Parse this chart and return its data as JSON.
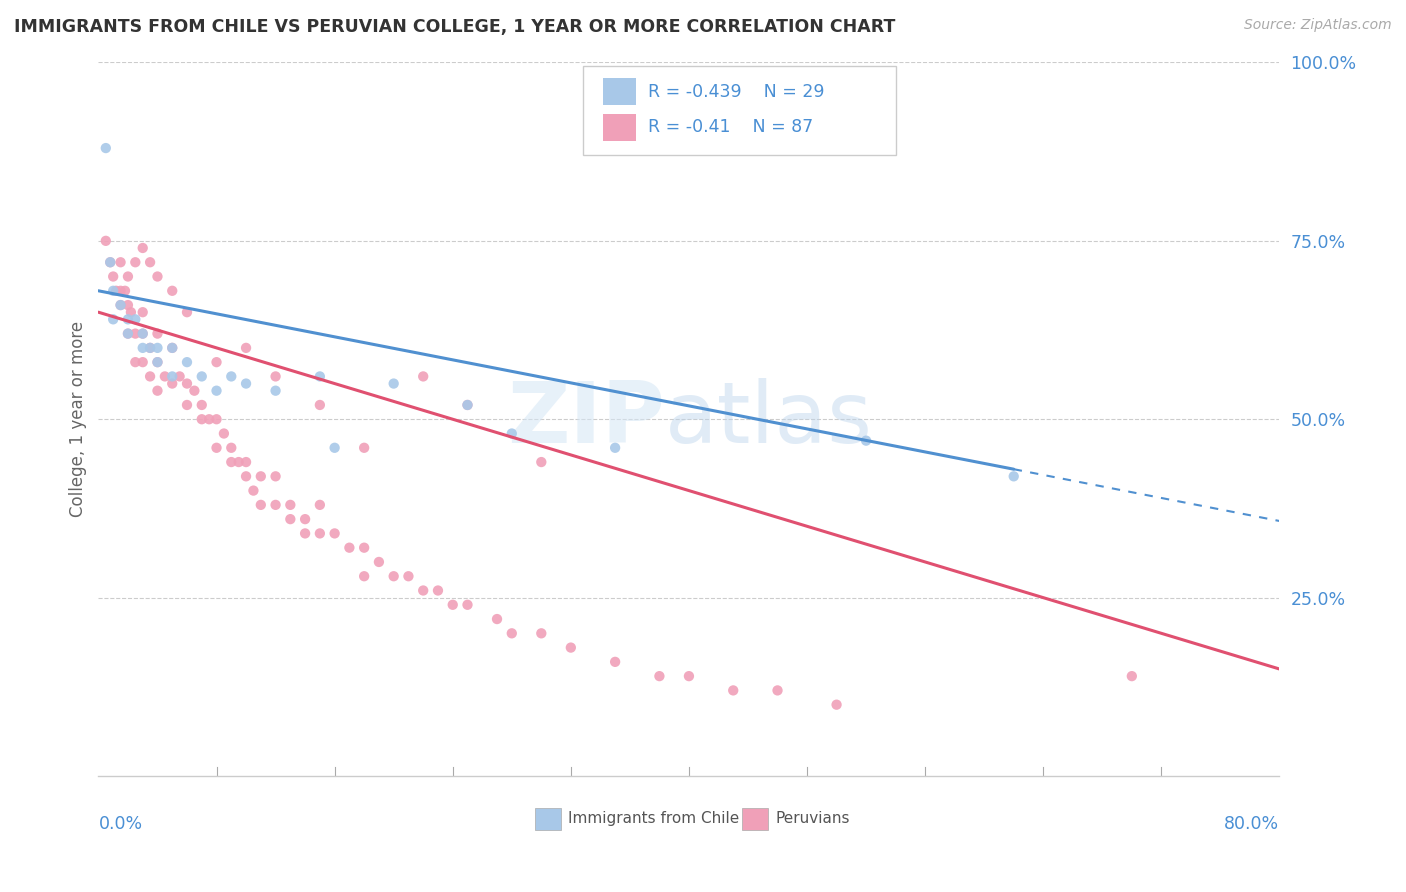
{
  "title": "IMMIGRANTS FROM CHILE VS PERUVIAN COLLEGE, 1 YEAR OR MORE CORRELATION CHART",
  "source_text": "Source: ZipAtlas.com",
  "ylabel": "College, 1 year or more",
  "r_chile": -0.439,
  "n_chile": 29,
  "r_peru": -0.41,
  "n_peru": 87,
  "xlim": [
    0.0,
    0.8
  ],
  "ylim": [
    0.0,
    1.0
  ],
  "chile_color": "#a8c8e8",
  "peru_color": "#f0a0b8",
  "chile_line_color": "#5090d0",
  "peru_line_color": "#e05070",
  "background_color": "#ffffff",
  "chile_scatter_x": [
    0.005,
    0.008,
    0.01,
    0.01,
    0.015,
    0.02,
    0.02,
    0.025,
    0.03,
    0.03,
    0.035,
    0.04,
    0.04,
    0.05,
    0.05,
    0.06,
    0.07,
    0.08,
    0.09,
    0.1,
    0.12,
    0.15,
    0.2,
    0.25,
    0.28,
    0.35,
    0.52,
    0.62,
    0.16
  ],
  "chile_scatter_y": [
    0.88,
    0.72,
    0.68,
    0.64,
    0.66,
    0.64,
    0.62,
    0.64,
    0.62,
    0.6,
    0.6,
    0.6,
    0.58,
    0.6,
    0.56,
    0.58,
    0.56,
    0.54,
    0.56,
    0.55,
    0.54,
    0.56,
    0.55,
    0.52,
    0.48,
    0.46,
    0.47,
    0.42,
    0.46
  ],
  "peru_scatter_x": [
    0.005,
    0.008,
    0.01,
    0.012,
    0.015,
    0.015,
    0.018,
    0.02,
    0.02,
    0.022,
    0.025,
    0.025,
    0.03,
    0.03,
    0.03,
    0.035,
    0.035,
    0.04,
    0.04,
    0.04,
    0.045,
    0.05,
    0.05,
    0.055,
    0.06,
    0.06,
    0.065,
    0.07,
    0.07,
    0.075,
    0.08,
    0.08,
    0.085,
    0.09,
    0.09,
    0.095,
    0.1,
    0.1,
    0.105,
    0.11,
    0.11,
    0.12,
    0.12,
    0.13,
    0.13,
    0.14,
    0.14,
    0.15,
    0.15,
    0.16,
    0.17,
    0.18,
    0.18,
    0.19,
    0.2,
    0.21,
    0.22,
    0.23,
    0.24,
    0.25,
    0.27,
    0.28,
    0.3,
    0.32,
    0.35,
    0.38,
    0.4,
    0.43,
    0.46,
    0.5,
    0.22,
    0.25,
    0.3,
    0.15,
    0.18,
    0.1,
    0.12,
    0.08,
    0.06,
    0.05,
    0.04,
    0.035,
    0.03,
    0.025,
    0.02,
    0.015,
    0.7
  ],
  "peru_scatter_y": [
    0.75,
    0.72,
    0.7,
    0.68,
    0.72,
    0.66,
    0.68,
    0.66,
    0.62,
    0.65,
    0.62,
    0.58,
    0.65,
    0.62,
    0.58,
    0.6,
    0.56,
    0.62,
    0.58,
    0.54,
    0.56,
    0.6,
    0.55,
    0.56,
    0.55,
    0.52,
    0.54,
    0.52,
    0.5,
    0.5,
    0.5,
    0.46,
    0.48,
    0.46,
    0.44,
    0.44,
    0.44,
    0.42,
    0.4,
    0.42,
    0.38,
    0.42,
    0.38,
    0.38,
    0.36,
    0.36,
    0.34,
    0.38,
    0.34,
    0.34,
    0.32,
    0.32,
    0.28,
    0.3,
    0.28,
    0.28,
    0.26,
    0.26,
    0.24,
    0.24,
    0.22,
    0.2,
    0.2,
    0.18,
    0.16,
    0.14,
    0.14,
    0.12,
    0.12,
    0.1,
    0.56,
    0.52,
    0.44,
    0.52,
    0.46,
    0.6,
    0.56,
    0.58,
    0.65,
    0.68,
    0.7,
    0.72,
    0.74,
    0.72,
    0.7,
    0.68,
    0.14
  ]
}
